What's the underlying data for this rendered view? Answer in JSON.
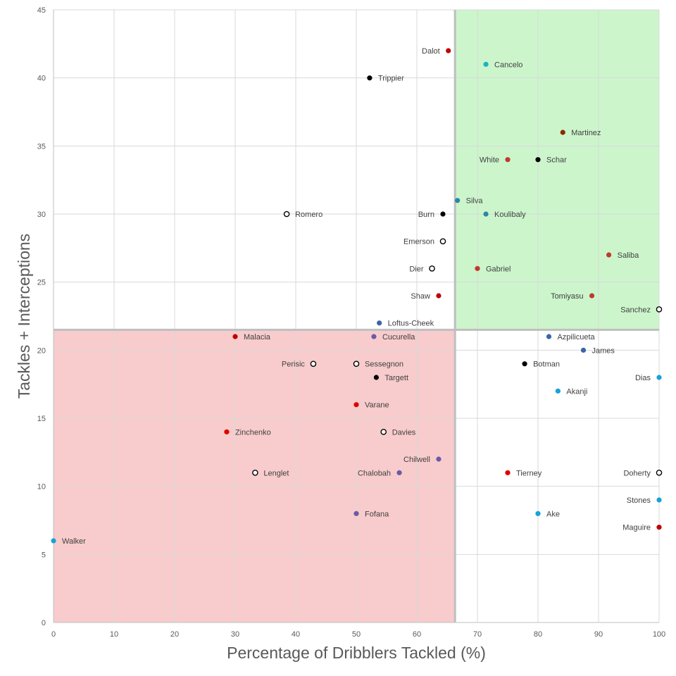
{
  "chart_data": {
    "type": "scatter",
    "title": "",
    "xlabel": "Percentage of Dribblers Tackled (%)",
    "ylabel": "Tackles + Interceptions",
    "xlim": [
      0,
      100
    ],
    "ylim": [
      0,
      45
    ],
    "x_ticks": [
      "0",
      "10",
      "20",
      "30",
      "40",
      "50",
      "60",
      "70",
      "80",
      "90",
      "100"
    ],
    "y_ticks": [
      "0",
      "5",
      "10",
      "15",
      "20",
      "25",
      "30",
      "35",
      "40",
      "45"
    ],
    "grid": true,
    "legend": "none",
    "regions": [
      {
        "quadrant": "high-tackle-high-actions",
        "x_range": [
          66.3,
          100
        ],
        "y_range": [
          21.5,
          45
        ],
        "color": "#ccf5cc"
      },
      {
        "quadrant": "low-tackle-low-actions",
        "x_range": [
          0,
          66.3
        ],
        "y_range": [
          0,
          21.5
        ],
        "color": "#f8cccc"
      }
    ],
    "points": [
      {
        "label": "Dalot",
        "x": 65.2,
        "y": 42,
        "color": "#c00000",
        "filled": true,
        "label_side": "left"
      },
      {
        "label": "Cancelo",
        "x": 71.4,
        "y": 41,
        "color": "#17b5c4",
        "filled": true,
        "label_side": "right"
      },
      {
        "label": "Trippier",
        "x": 52.2,
        "y": 40,
        "color": "#000000",
        "filled": true,
        "label_side": "right"
      },
      {
        "label": "Martinez",
        "x": 84.1,
        "y": 36,
        "color": "#8b2a00",
        "filled": true,
        "label_side": "right"
      },
      {
        "label": "White",
        "x": 75.0,
        "y": 34,
        "color": "#c0392b",
        "filled": true,
        "label_side": "left"
      },
      {
        "label": "Schar",
        "x": 80.0,
        "y": 34,
        "color": "#000000",
        "filled": true,
        "label_side": "right"
      },
      {
        "label": "Silva",
        "x": 66.7,
        "y": 31,
        "color": "#2e86a6",
        "filled": true,
        "label_side": "right"
      },
      {
        "label": "Romero",
        "x": 38.5,
        "y": 30,
        "color": "#000000",
        "filled": false,
        "label_side": "right"
      },
      {
        "label": "Burn",
        "x": 64.3,
        "y": 30,
        "color": "#000000",
        "filled": true,
        "label_side": "left"
      },
      {
        "label": "Koulibaly",
        "x": 71.4,
        "y": 30,
        "color": "#2e86a6",
        "filled": true,
        "label_side": "right"
      },
      {
        "label": "Emerson",
        "x": 64.3,
        "y": 28,
        "color": "#000000",
        "filled": false,
        "label_side": "left"
      },
      {
        "label": "Saliba",
        "x": 91.7,
        "y": 27,
        "color": "#c0392b",
        "filled": true,
        "label_side": "right"
      },
      {
        "label": "Dier",
        "x": 62.5,
        "y": 26,
        "color": "#000000",
        "filled": false,
        "label_side": "left"
      },
      {
        "label": "Gabriel",
        "x": 70.0,
        "y": 26,
        "color": "#c0392b",
        "filled": true,
        "label_side": "right"
      },
      {
        "label": "Shaw",
        "x": 63.6,
        "y": 24,
        "color": "#c00000",
        "filled": true,
        "label_side": "left"
      },
      {
        "label": "Tomiyasu",
        "x": 88.9,
        "y": 24,
        "color": "#c0392b",
        "filled": true,
        "label_side": "left"
      },
      {
        "label": "Sanchez",
        "x": 100,
        "y": 23,
        "color": "#000000",
        "filled": false,
        "label_side": "left"
      },
      {
        "label": "Loftus-Cheek",
        "x": 53.8,
        "y": 22,
        "color": "#3d64a8",
        "filled": true,
        "label_side": "right"
      },
      {
        "label": "Malacia",
        "x": 30.0,
        "y": 21,
        "color": "#c00000",
        "filled": true,
        "label_side": "right"
      },
      {
        "label": "Cucurella",
        "x": 52.9,
        "y": 21,
        "color": "#6a5aa8",
        "filled": true,
        "label_side": "right"
      },
      {
        "label": "Azpilicueta",
        "x": 81.8,
        "y": 21,
        "color": "#3d64a8",
        "filled": true,
        "label_side": "right"
      },
      {
        "label": "James",
        "x": 87.5,
        "y": 20,
        "color": "#3d64a8",
        "filled": true,
        "label_side": "right"
      },
      {
        "label": "Perisic",
        "x": 42.9,
        "y": 19,
        "color": "#000000",
        "filled": false,
        "label_side": "left"
      },
      {
        "label": "Sessegnon",
        "x": 50.0,
        "y": 19,
        "color": "#000000",
        "filled": false,
        "label_side": "right"
      },
      {
        "label": "Botman",
        "x": 77.8,
        "y": 19,
        "color": "#000000",
        "filled": true,
        "label_side": "right"
      },
      {
        "label": "Targett",
        "x": 53.3,
        "y": 18,
        "color": "#000000",
        "filled": true,
        "label_side": "right"
      },
      {
        "label": "Dias",
        "x": 100,
        "y": 18,
        "color": "#17a2d8",
        "filled": true,
        "label_side": "left"
      },
      {
        "label": "Akanji",
        "x": 83.3,
        "y": 17,
        "color": "#17a2d8",
        "filled": true,
        "label_side": "right"
      },
      {
        "label": "Varane",
        "x": 50.0,
        "y": 16,
        "color": "#e00000",
        "filled": true,
        "label_side": "right"
      },
      {
        "label": "Zinchenko",
        "x": 28.6,
        "y": 14,
        "color": "#e00000",
        "filled": true,
        "label_side": "right"
      },
      {
        "label": "Davies",
        "x": 54.5,
        "y": 14,
        "color": "#000000",
        "filled": false,
        "label_side": "right"
      },
      {
        "label": "Chilwell",
        "x": 63.6,
        "y": 12,
        "color": "#6a5aa8",
        "filled": true,
        "label_side": "left"
      },
      {
        "label": "Lenglet",
        "x": 33.3,
        "y": 11,
        "color": "#000000",
        "filled": false,
        "label_side": "right"
      },
      {
        "label": "Chalobah",
        "x": 57.1,
        "y": 11,
        "color": "#6a5aa8",
        "filled": true,
        "label_side": "left"
      },
      {
        "label": "Tierney",
        "x": 75.0,
        "y": 11,
        "color": "#e00000",
        "filled": true,
        "label_side": "right"
      },
      {
        "label": "Doherty",
        "x": 100,
        "y": 11,
        "color": "#000000",
        "filled": false,
        "label_side": "left"
      },
      {
        "label": "Stones",
        "x": 100,
        "y": 9,
        "color": "#17a2d8",
        "filled": true,
        "label_side": "left"
      },
      {
        "label": "Fofana",
        "x": 50.0,
        "y": 8,
        "color": "#6a5aa8",
        "filled": true,
        "label_side": "right"
      },
      {
        "label": "Ake",
        "x": 80.0,
        "y": 8,
        "color": "#17a2d8",
        "filled": true,
        "label_side": "right"
      },
      {
        "label": "Maguire",
        "x": 100,
        "y": 7,
        "color": "#c00000",
        "filled": true,
        "label_side": "left"
      },
      {
        "label": "Walker",
        "x": 0,
        "y": 6,
        "color": "#17a2d8",
        "filled": true,
        "label_side": "right"
      }
    ]
  }
}
